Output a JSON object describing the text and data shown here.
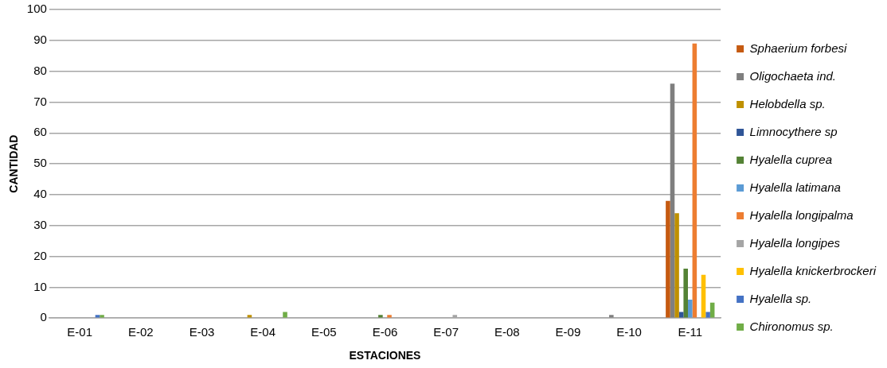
{
  "chart_data": {
    "type": "bar",
    "xlabel": "ESTACIONES",
    "ylabel": "CANTIDAD",
    "categories": [
      "E-01",
      "E-02",
      "E-03",
      "E-04",
      "E-05",
      "E-06",
      "E-07",
      "E-08",
      "E-09",
      "E-10",
      "E-11"
    ],
    "series": [
      {
        "name": "Sphaerium forbesi",
        "color": "#c55a11",
        "values": [
          0,
          0,
          0,
          0,
          0,
          0,
          0,
          0,
          0,
          0,
          38
        ]
      },
      {
        "name": "Oligochaeta ind.",
        "color": "#7f7f7f",
        "values": [
          0,
          0,
          0,
          0,
          0,
          0,
          0,
          0,
          0,
          1,
          76
        ]
      },
      {
        "name": "Helobdella sp.",
        "color": "#bf9000",
        "values": [
          0,
          0,
          0,
          1,
          0,
          0,
          0,
          0,
          0,
          0,
          34
        ]
      },
      {
        "name": "Limnocythere sp",
        "color": "#2f5597",
        "values": [
          0,
          0,
          0,
          0,
          0,
          0,
          0,
          0,
          0,
          0,
          2
        ]
      },
      {
        "name": "Hyalella cuprea",
        "color": "#548235",
        "values": [
          0,
          0,
          0,
          0,
          0,
          1,
          0,
          0,
          0,
          0,
          16
        ]
      },
      {
        "name": "Hyalella latimana",
        "color": "#5b9bd5",
        "values": [
          0,
          0,
          0,
          0,
          0,
          0,
          0,
          0,
          0,
          0,
          6
        ]
      },
      {
        "name": "Hyalella longipalma",
        "color": "#ed7d31",
        "values": [
          0,
          0,
          0,
          0,
          0,
          1,
          0,
          0,
          0,
          0,
          89
        ]
      },
      {
        "name": "Hyalella longipes",
        "color": "#a5a5a5",
        "values": [
          0,
          0,
          0,
          0,
          0,
          0,
          1,
          0,
          0,
          0,
          0
        ]
      },
      {
        "name": "Hyalella knickerbrockeri",
        "color": "#ffc000",
        "values": [
          0,
          0,
          0,
          0,
          0,
          0,
          0,
          0,
          0,
          0,
          14
        ]
      },
      {
        "name": "Hyalella sp.",
        "color": "#4472c4",
        "values": [
          1,
          0,
          0,
          0,
          0,
          0,
          0,
          0,
          0,
          0,
          2
        ]
      },
      {
        "name": "Chironomus sp.",
        "color": "#70ad47",
        "values": [
          1,
          0,
          0,
          2,
          0,
          0,
          0,
          0,
          0,
          0,
          5
        ]
      }
    ],
    "ylim": [
      0,
      100
    ],
    "yticks": [
      0,
      10,
      20,
      30,
      40,
      50,
      60,
      70,
      80,
      90,
      100
    ],
    "grid": "y",
    "legend": "right"
  }
}
